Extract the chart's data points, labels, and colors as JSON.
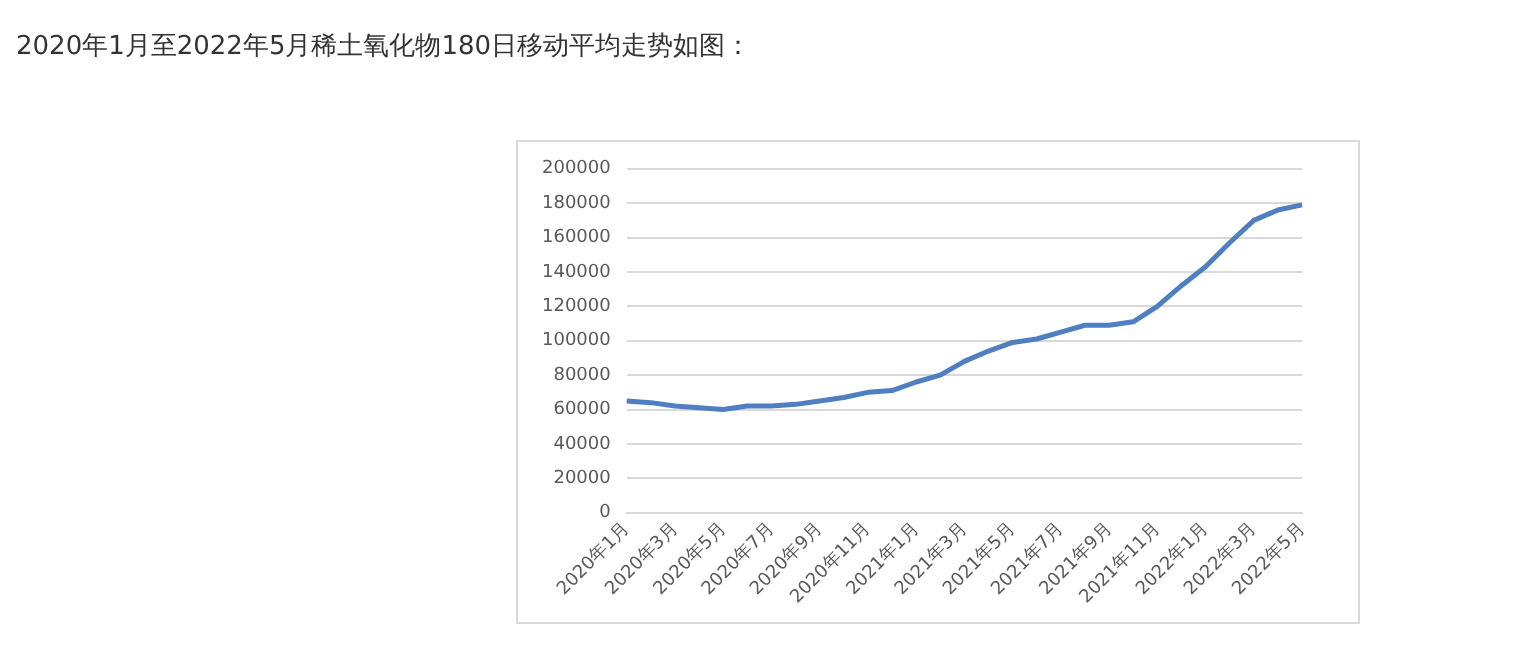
{
  "chart_data": {
    "type": "line",
    "title": "2020年1月至2022年5月稀土氧化物180日移动平均走势如图：",
    "categories": [
      "2020年1月",
      null,
      "2020年3月",
      null,
      "2020年5月",
      null,
      "2020年7月",
      null,
      "2020年9月",
      null,
      "2020年11月",
      null,
      "2021年1月",
      null,
      "2021年3月",
      null,
      "2021年5月",
      null,
      "2021年7月",
      null,
      "2021年9月",
      null,
      "2021年11月",
      null,
      "2022年1月",
      null,
      "2022年3月",
      null,
      "2022年5月"
    ],
    "series": [
      {
        "color": "#4f7fc0",
        "values": [
          65000,
          64000,
          62000,
          61000,
          60000,
          62000,
          62000,
          63000,
          65000,
          67000,
          70000,
          71000,
          76000,
          80000,
          88000,
          94000,
          99000,
          101000,
          105000,
          109000,
          109000,
          111000,
          120000,
          132000,
          143000,
          157000,
          170000,
          176000,
          179000
        ]
      }
    ],
    "ylim": [
      0,
      200000
    ],
    "yticks": [
      0,
      20000,
      40000,
      60000,
      80000,
      100000,
      120000,
      140000,
      160000,
      180000,
      200000
    ],
    "grid": "y",
    "legend": false,
    "marker": "none",
    "line_style": "solid"
  }
}
